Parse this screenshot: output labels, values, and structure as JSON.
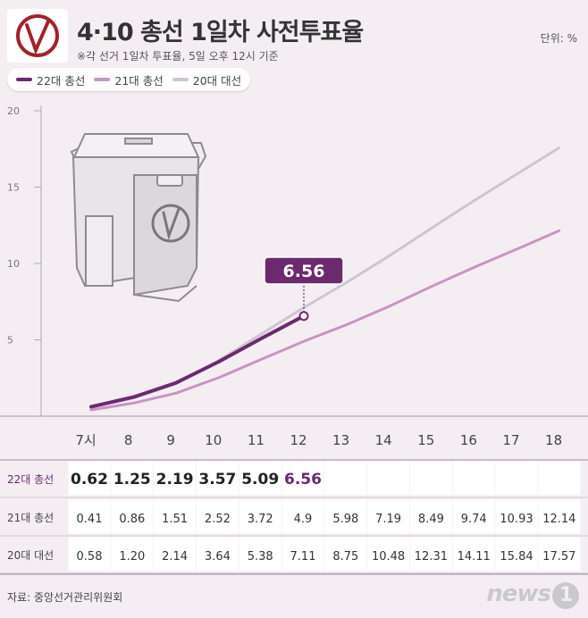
{
  "header": {
    "title": "4·10 총선 1일차 사전투표율",
    "subtitle": "※각 선거 1일차 투표율, 5일 오후 12시 기준",
    "unit": "단위: %"
  },
  "chart_data": {
    "type": "line",
    "x": [
      "7시",
      "8",
      "9",
      "10",
      "11",
      "12",
      "13",
      "14",
      "15",
      "16",
      "17",
      "18"
    ],
    "ylim": [
      0,
      20
    ],
    "yticks": [
      "20",
      "15",
      "10",
      "5"
    ],
    "series": [
      {
        "name": "22대 총선",
        "color": "#6b2a6e",
        "values": [
          0.62,
          1.25,
          2.19,
          3.57,
          5.09,
          6.56,
          null,
          null,
          null,
          null,
          null,
          null
        ],
        "labels": [
          "0.62",
          "1.25",
          "2.19",
          "3.57",
          "5.09",
          "6.56",
          "",
          "",
          "",
          "",
          "",
          ""
        ]
      },
      {
        "name": "21대 총선",
        "color": "#c994c3",
        "values": [
          0.41,
          0.86,
          1.51,
          2.52,
          3.72,
          4.9,
          5.98,
          7.19,
          8.49,
          9.74,
          10.93,
          12.14
        ],
        "labels": [
          "0.41",
          "0.86",
          "1.51",
          "2.52",
          "3.72",
          "4.9",
          "5.98",
          "7.19",
          "8.49",
          "9.74",
          "10.93",
          "12.14"
        ]
      },
      {
        "name": "20대 대선",
        "color": "#cdc5d2",
        "values": [
          0.58,
          1.2,
          2.14,
          3.64,
          5.38,
          7.11,
          8.75,
          10.48,
          12.31,
          14.11,
          15.84,
          17.57
        ],
        "labels": [
          "0.58",
          "1.20",
          "2.14",
          "3.64",
          "5.38",
          "7.11",
          "8.75",
          "10.48",
          "12.31",
          "14.11",
          "15.84",
          "17.57"
        ]
      }
    ],
    "callout": "6.56",
    "grid": false,
    "legend_position": "top-left"
  },
  "footer": {
    "source": "자료: 중앙선거관리위원회",
    "logo": "news",
    "logo_badge": "1"
  }
}
